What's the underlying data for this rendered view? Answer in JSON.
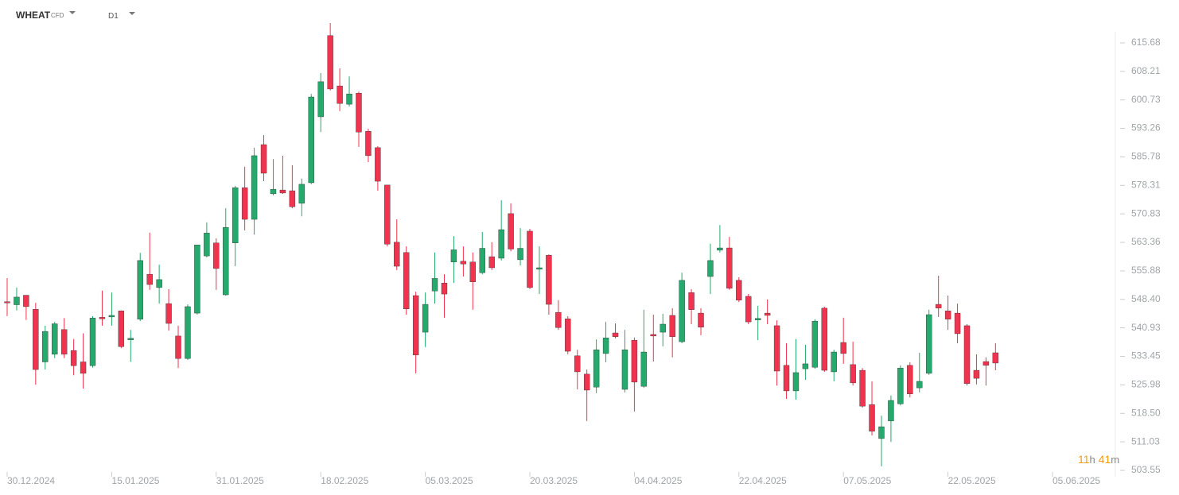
{
  "header": {
    "symbol": "WHEAT",
    "kind": "CFD",
    "timeframe": "D1"
  },
  "countdown": {
    "hours": "11",
    "h": "h",
    "minutes": "41",
    "m": "m"
  },
  "chart_data": {
    "type": "candlestick",
    "up_color": "#26a96c",
    "down_color": "#f0344f",
    "xlim": [
      0,
      110
    ],
    "xticks": [
      {
        "value": 0,
        "label": "30.12.2024"
      },
      {
        "value": 11,
        "label": "15.01.2025"
      },
      {
        "value": 22,
        "label": "31.01.2025"
      },
      {
        "value": 33,
        "label": "18.02.2025"
      },
      {
        "value": 44,
        "label": "05.03.2025"
      },
      {
        "value": 55,
        "label": "20.03.2025"
      },
      {
        "value": 66,
        "label": "04.04.2025"
      },
      {
        "value": 77,
        "label": "22.04.2025"
      },
      {
        "value": 88,
        "label": "07.05.2025"
      },
      {
        "value": 99,
        "label": "22.05.2025"
      },
      {
        "value": 110,
        "label": "05.06.2025"
      }
    ],
    "ylim": [
      503.55,
      615.68
    ],
    "yticks": [
      615.68,
      608.21,
      600.73,
      593.26,
      585.78,
      578.31,
      570.83,
      563.36,
      555.88,
      548.4,
      540.93,
      533.45,
      525.98,
      518.5,
      511.03,
      503.55
    ],
    "yticks_labels": [
      "615.68",
      "608.21",
      "600.73",
      "593.26",
      "585.78",
      "578.31",
      "570.83",
      "563.36",
      "555.88",
      "548.40",
      "540.93",
      "533.45",
      "525.98",
      "518.50",
      "511.03",
      "503.55"
    ],
    "open": [
      547.8,
      547,
      549.5,
      545.8,
      532,
      534,
      540.5,
      535,
      532,
      531,
      543.7,
      543.8,
      545.4,
      537.8,
      543.2,
      555,
      551.5,
      547.3,
      538.8,
      532.9,
      544.8,
      559.8,
      563.2,
      549.6,
      563.2,
      577.7,
      569.4,
      589,
      576.1,
      577.1,
      576.9,
      573.6,
      579,
      596.3,
      617.6,
      604.4,
      599.6,
      602.5,
      592.5,
      588.2,
      578.4,
      563.4,
      560.7,
      549.4,
      539.8,
      550.6,
      552.7,
      558.2,
      558.4,
      558.2,
      555.4,
      559.6,
      559.2,
      570.9,
      558.8,
      566.3,
      556.3,
      560,
      545,
      543.3,
      533.6,
      528.8,
      525.4,
      534.2,
      539.6,
      524.8,
      537.7,
      525.6,
      539.2,
      539.8,
      544.2,
      537.3,
      550.2,
      544.8,
      554.4,
      561.3,
      561.9,
      553.4,
      549.2,
      543,
      544.8,
      541.5,
      531.1,
      524.4,
      530.2,
      530.6,
      546.1,
      529.4,
      537.1,
      531.3,
      529.8,
      520.8,
      511.9,
      516.5,
      521,
      531.1,
      525.2,
      529,
      547.1,
      545.4,
      544.8,
      541.5,
      529.8,
      532.1,
      534.4
    ],
    "high": [
      554,
      551.5,
      549.5,
      547.5,
      541.5,
      542.5,
      543.5,
      538,
      539.5,
      544,
      550.7,
      550.2,
      545.5,
      540.4,
      560.6,
      565.9,
      557.5,
      551.1,
      541.5,
      547.1,
      562.7,
      568.6,
      564.4,
      572.3,
      578.2,
      583.2,
      588.2,
      591.5,
      585.2,
      586.1,
      583.6,
      580.1,
      602.3,
      607.8,
      620.9,
      609,
      606.9,
      602.9,
      593.2,
      588.6,
      578.4,
      569.4,
      562.3,
      550.4,
      550.2,
      560.7,
      555,
      565,
      562.3,
      560.7,
      566.1,
      563.4,
      574.4,
      573.6,
      567.1,
      566.9,
      562.3,
      560.2,
      548.2,
      544,
      535.2,
      530,
      537.9,
      542.5,
      542.1,
      540.4,
      538.4,
      545.7,
      544.4,
      544.6,
      546.1,
      555.4,
      551.1,
      546.1,
      563,
      567.9,
      564.8,
      554.2,
      549.8,
      546.7,
      548.4,
      542.9,
      536.9,
      538,
      536.5,
      543.2,
      546.5,
      535.2,
      543.6,
      537.3,
      530.4,
      526.9,
      517.9,
      523.2,
      531.1,
      531.9,
      534.4,
      545.7,
      554.6,
      549.4,
      547.3,
      541.9,
      534,
      533.2,
      536.9
    ],
    "low": [
      544,
      545.5,
      543,
      526,
      530,
      533,
      533,
      528.5,
      525,
      530.5,
      541.5,
      541.5,
      535.6,
      532,
      542.7,
      550.9,
      547.3,
      540.2,
      530.4,
      532.5,
      544.4,
      559.4,
      550.9,
      549.4,
      557.1,
      566.5,
      565.4,
      579.4,
      575.7,
      576.1,
      572.3,
      570.2,
      578.6,
      592.3,
      603.2,
      597.8,
      599,
      588.4,
      584.4,
      576.9,
      562.3,
      556.1,
      544.4,
      529,
      535.9,
      547.3,
      543.6,
      552.7,
      554.4,
      545.7,
      555,
      556.1,
      558.6,
      561,
      557.3,
      551.1,
      549.8,
      544.4,
      540.4,
      534,
      524.8,
      516.5,
      523.8,
      531.9,
      538.2,
      524,
      519,
      525.2,
      532.1,
      536.1,
      533.2,
      536.9,
      541.9,
      539,
      549.8,
      560.7,
      550.9,
      547.7,
      541.9,
      537.7,
      541.9,
      525.8,
      522.3,
      522.1,
      527.3,
      530.2,
      529.4,
      526.9,
      531.5,
      525.8,
      520,
      512.7,
      504.6,
      511,
      520.6,
      522.7,
      524,
      528.6,
      543.8,
      540.4,
      536.9,
      525.8,
      526.1,
      525.8,
      529.8
    ],
    "close": [
      547.5,
      549,
      546.5,
      530,
      540,
      542,
      534,
      531,
      529,
      543.5,
      543.3,
      544.2,
      536,
      538.2,
      558.6,
      552.3,
      553.6,
      542.1,
      532.9,
      546.5,
      562.7,
      565.8,
      556.5,
      567.3,
      577.7,
      569.4,
      586.1,
      581.5,
      577.3,
      576.3,
      572.7,
      578.6,
      601.5,
      605.5,
      603.6,
      599.8,
      602.3,
      592.3,
      586.1,
      579.4,
      562.9,
      557.1,
      545.9,
      533.8,
      547.1,
      553.9,
      549.8,
      561.4,
      557.7,
      553,
      561.8,
      556.7,
      566.7,
      561.6,
      561.8,
      551.5,
      556.7,
      547.1,
      541,
      534.8,
      529.4,
      524.6,
      535.2,
      538.3,
      538.6,
      535.2,
      526.7,
      534.6,
      538.8,
      541.9,
      538.6,
      553.4,
      545.7,
      541.1,
      558.6,
      561.9,
      551.3,
      548.2,
      542.5,
      543.4,
      544.2,
      529.6,
      524.4,
      529.2,
      531.5,
      542.7,
      529.8,
      534.6,
      534.2,
      526.5,
      520.4,
      513.8,
      515,
      521.9,
      530.4,
      523.6,
      526.9,
      544.4,
      546.1,
      543.2,
      539.4,
      526.3,
      527.7,
      531.1,
      531.7
    ]
  }
}
